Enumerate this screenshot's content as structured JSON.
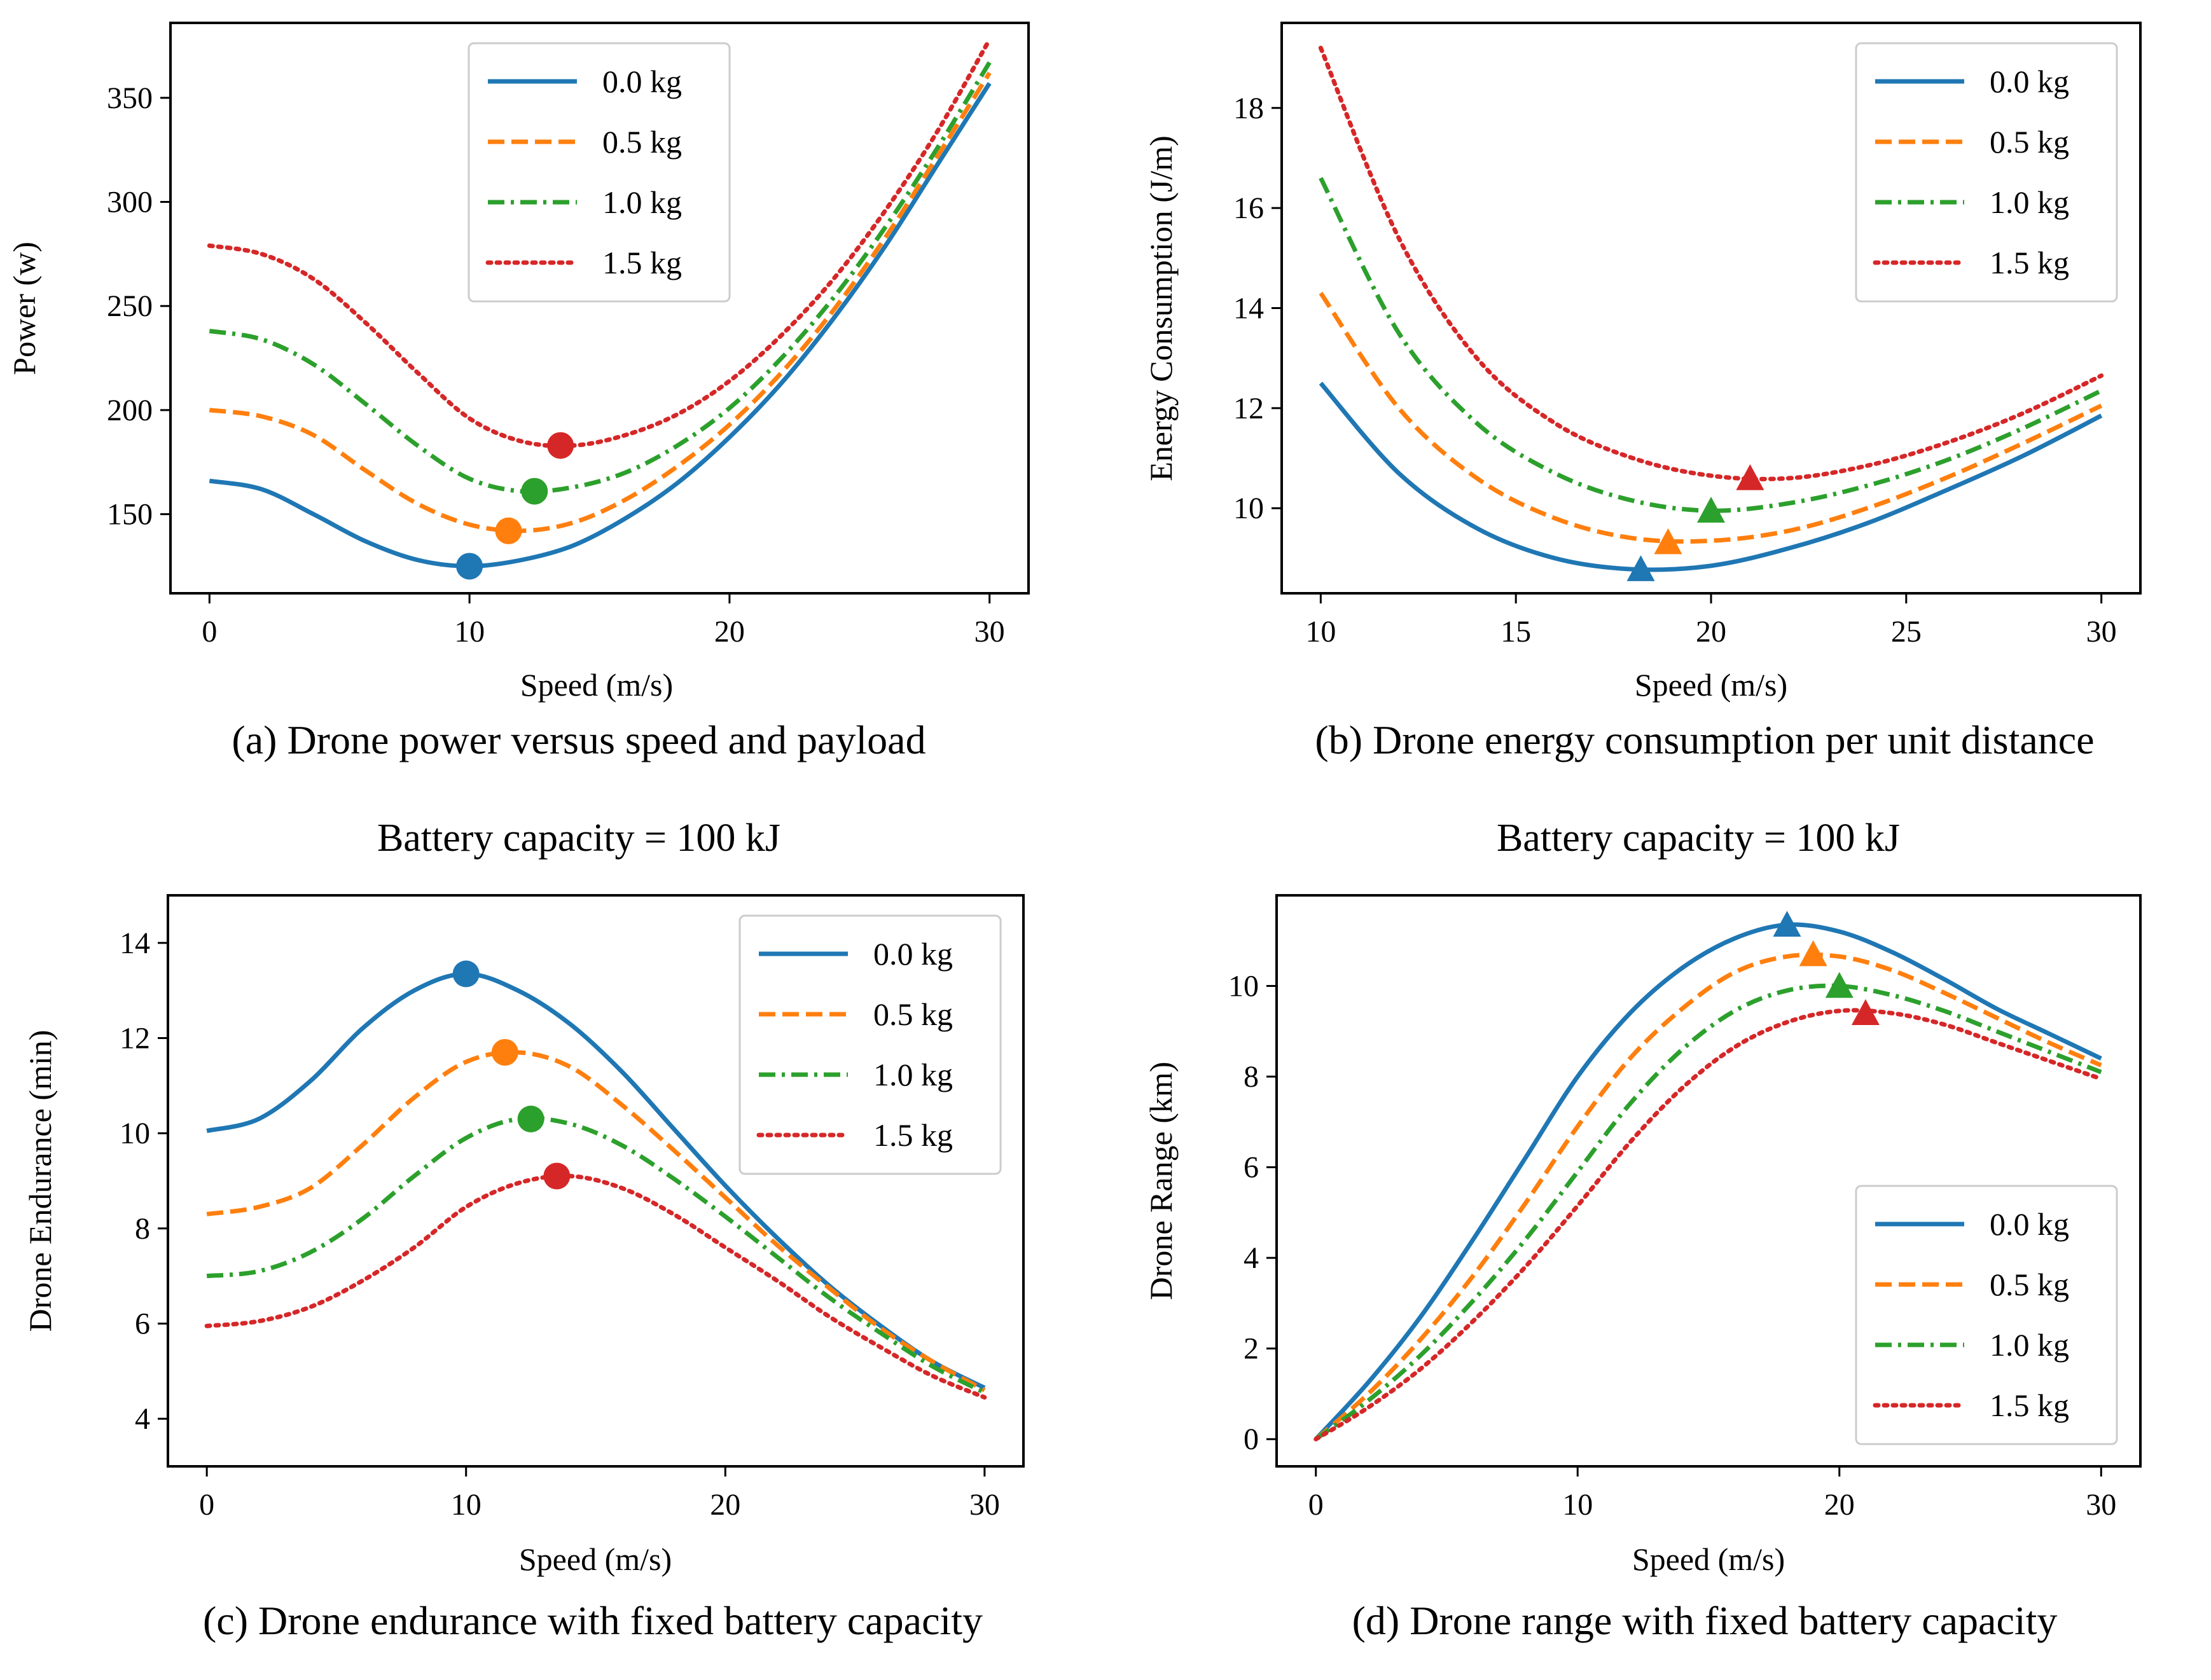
{
  "figure": {
    "colors": {
      "0.0 kg": "#1f77b4",
      "0.5 kg": "#ff7f0e",
      "1.0 kg": "#2ca02c",
      "1.5 kg": "#d62728"
    },
    "line_styles": [
      "solid",
      "dashed",
      "dashdot",
      "dotted"
    ]
  },
  "chart_data": [
    {
      "type": "line",
      "id": "a",
      "caption": "(a) Drone power versus speed and payload",
      "title": "",
      "xlabel": "Speed (m/s)",
      "ylabel": "Power (w)",
      "xlim": [
        -1.5,
        31.5
      ],
      "ylim": [
        112,
        386
      ],
      "xticks": [
        0,
        10,
        20,
        30
      ],
      "yticks": [
        150,
        200,
        250,
        300,
        350
      ],
      "grid": false,
      "legend": "top-center",
      "marker": "circle",
      "series": [
        {
          "name": "0.0 kg",
          "x": [
            0,
            2,
            4,
            6,
            8,
            10,
            12,
            14,
            16,
            18,
            20,
            22,
            24,
            26,
            28,
            30
          ],
          "y": [
            166,
            162,
            150,
            137,
            128,
            125,
            128,
            135,
            148,
            165,
            187,
            213,
            244,
            279,
            318,
            357
          ],
          "opt": [
            10.0,
            125
          ]
        },
        {
          "name": "0.5 kg",
          "x": [
            0,
            2,
            4,
            6,
            8,
            10,
            12,
            14,
            16,
            18,
            20,
            22,
            24,
            26,
            28,
            30
          ],
          "y": [
            200,
            197,
            188,
            171,
            155,
            145,
            142,
            146,
            157,
            173,
            193,
            218,
            248,
            283,
            322,
            362
          ],
          "opt": [
            11.5,
            142
          ]
        },
        {
          "name": "1.0 kg",
          "x": [
            0,
            2,
            4,
            6,
            8,
            10,
            12,
            14,
            16,
            18,
            20,
            22,
            24,
            26,
            28,
            30
          ],
          "y": [
            238,
            234,
            222,
            203,
            183,
            167,
            161,
            163,
            170,
            183,
            201,
            225,
            254,
            288,
            326,
            367
          ],
          "opt": [
            12.5,
            161
          ]
        },
        {
          "name": "1.5 kg",
          "x": [
            0,
            2,
            4,
            6,
            8,
            10,
            12,
            14,
            16,
            18,
            20,
            22,
            24,
            26,
            28,
            30
          ],
          "y": [
            279,
            275,
            263,
            242,
            218,
            196,
            185,
            183,
            188,
            198,
            214,
            236,
            263,
            296,
            334,
            378
          ],
          "opt": [
            13.5,
            183
          ]
        }
      ]
    },
    {
      "type": "line",
      "id": "b",
      "caption": "(b) Drone energy consumption per unit distance",
      "title": "",
      "xlabel": "Speed (m/s)",
      "ylabel": "Energy Consumption (J/m)",
      "xlim": [
        9,
        31
      ],
      "ylim": [
        8.3,
        19.7
      ],
      "xticks": [
        10,
        15,
        20,
        25,
        30
      ],
      "yticks": [
        10,
        12,
        14,
        16,
        18
      ],
      "grid": false,
      "legend": "top-right",
      "marker": "triangle",
      "series": [
        {
          "name": "0.0 kg",
          "x": [
            10,
            12,
            14,
            16,
            18,
            20,
            22,
            24,
            26,
            28,
            30
          ],
          "y": [
            12.5,
            10.7,
            9.6,
            9.0,
            8.78,
            8.85,
            9.2,
            9.7,
            10.35,
            11.05,
            11.85
          ],
          "opt": [
            18.2,
            8.78
          ]
        },
        {
          "name": "0.5 kg",
          "x": [
            10,
            12,
            14,
            16,
            18,
            20,
            22,
            24,
            26,
            28,
            30
          ],
          "y": [
            14.3,
            12.0,
            10.6,
            9.8,
            9.4,
            9.35,
            9.55,
            10.0,
            10.6,
            11.3,
            12.05
          ],
          "opt": [
            18.9,
            9.32
          ]
        },
        {
          "name": "1.0 kg",
          "x": [
            10,
            12,
            14,
            16,
            18,
            20,
            22,
            24,
            26,
            28,
            30
          ],
          "y": [
            16.6,
            13.5,
            11.7,
            10.7,
            10.15,
            9.95,
            10.1,
            10.45,
            10.95,
            11.6,
            12.35
          ],
          "opt": [
            20.0,
            9.95
          ]
        },
        {
          "name": "1.5 kg",
          "x": [
            10,
            12,
            14,
            16,
            18,
            20,
            22,
            24,
            26,
            28,
            30
          ],
          "y": [
            19.2,
            15.4,
            13.0,
            11.7,
            11.0,
            10.65,
            10.6,
            10.85,
            11.3,
            11.9,
            12.65
          ],
          "opt": [
            21.0,
            10.6
          ]
        }
      ]
    },
    {
      "type": "line",
      "id": "c",
      "caption": "(c) Drone endurance with fixed battery capacity",
      "title": "Battery capacity = 100 kJ",
      "xlabel": "Speed (m/s)",
      "ylabel": "Drone Endurance (min)",
      "xlim": [
        -1.5,
        31.5
      ],
      "ylim": [
        3.0,
        15.0
      ],
      "xticks": [
        0,
        10,
        20,
        30
      ],
      "yticks": [
        4,
        6,
        8,
        10,
        12,
        14
      ],
      "grid": false,
      "legend": "top-right",
      "marker": "circle",
      "series": [
        {
          "name": "0.0 kg",
          "x": [
            0,
            2,
            4,
            6,
            8,
            10,
            12,
            14,
            16,
            18,
            20,
            22,
            24,
            26,
            28,
            30
          ],
          "y": [
            10.05,
            10.3,
            11.1,
            12.2,
            13.0,
            13.35,
            13.0,
            12.3,
            11.3,
            10.1,
            8.9,
            7.8,
            6.8,
            5.95,
            5.2,
            4.65
          ],
          "opt": [
            10.0,
            13.35
          ]
        },
        {
          "name": "0.5 kg",
          "x": [
            0,
            2,
            4,
            6,
            8,
            10,
            12,
            14,
            16,
            18,
            20,
            22,
            24,
            26,
            28,
            30
          ],
          "y": [
            8.3,
            8.45,
            8.85,
            9.75,
            10.75,
            11.5,
            11.7,
            11.4,
            10.6,
            9.65,
            8.65,
            7.65,
            6.75,
            5.9,
            5.2,
            4.6
          ],
          "opt": [
            11.5,
            11.7
          ]
        },
        {
          "name": "1.0 kg",
          "x": [
            0,
            2,
            4,
            6,
            8,
            10,
            12,
            14,
            16,
            18,
            20,
            22,
            24,
            26,
            28,
            30
          ],
          "y": [
            7.0,
            7.1,
            7.5,
            8.2,
            9.1,
            9.9,
            10.3,
            10.2,
            9.75,
            9.05,
            8.25,
            7.4,
            6.55,
            5.8,
            5.1,
            4.55
          ],
          "opt": [
            12.5,
            10.3
          ]
        },
        {
          "name": "1.5 kg",
          "x": [
            0,
            2,
            4,
            6,
            8,
            10,
            12,
            14,
            16,
            18,
            20,
            22,
            24,
            26,
            28,
            30
          ],
          "y": [
            5.95,
            6.05,
            6.35,
            6.9,
            7.6,
            8.45,
            8.95,
            9.1,
            8.85,
            8.3,
            7.6,
            6.9,
            6.15,
            5.5,
            4.9,
            4.45
          ],
          "opt": [
            13.5,
            9.1
          ]
        }
      ]
    },
    {
      "type": "line",
      "id": "d",
      "caption": "(d) Drone range with fixed battery capacity",
      "title": "Battery capacity = 100 kJ",
      "xlabel": "Speed (m/s)",
      "ylabel": "Drone Range (km)",
      "xlim": [
        -1.5,
        31.5
      ],
      "ylim": [
        -0.6,
        12.0
      ],
      "xticks": [
        0,
        10,
        20,
        30
      ],
      "yticks": [
        0,
        2,
        4,
        6,
        8,
        10
      ],
      "grid": false,
      "legend": "bottom-right",
      "marker": "triangle",
      "series": [
        {
          "name": "0.0 kg",
          "x": [
            0,
            2,
            4,
            6,
            8,
            10,
            12,
            14,
            16,
            18,
            20,
            22,
            24,
            26,
            28,
            30
          ],
          "y": [
            0,
            1.25,
            2.7,
            4.4,
            6.2,
            8.0,
            9.4,
            10.4,
            11.05,
            11.35,
            11.2,
            10.75,
            10.15,
            9.5,
            8.95,
            8.4
          ],
          "opt": [
            18.0,
            11.35
          ]
        },
        {
          "name": "0.5 kg",
          "x": [
            0,
            2,
            4,
            6,
            8,
            10,
            12,
            14,
            16,
            18,
            20,
            22,
            24,
            26,
            28,
            30
          ],
          "y": [
            0,
            1.0,
            2.2,
            3.6,
            5.2,
            6.9,
            8.4,
            9.5,
            10.3,
            10.65,
            10.65,
            10.35,
            9.85,
            9.3,
            8.75,
            8.25
          ],
          "opt": [
            19.0,
            10.7
          ]
        },
        {
          "name": "1.0 kg",
          "x": [
            0,
            2,
            4,
            6,
            8,
            10,
            12,
            14,
            16,
            18,
            20,
            22,
            24,
            26,
            28,
            30
          ],
          "y": [
            0,
            0.85,
            1.85,
            3.05,
            4.4,
            5.9,
            7.4,
            8.6,
            9.45,
            9.9,
            10.0,
            9.8,
            9.45,
            9.0,
            8.55,
            8.1
          ],
          "opt": [
            20.0,
            10.0
          ]
        },
        {
          "name": "1.5 kg",
          "x": [
            0,
            2,
            4,
            6,
            8,
            10,
            12,
            14,
            16,
            18,
            20,
            22,
            24,
            26,
            28,
            30
          ],
          "y": [
            0,
            0.7,
            1.55,
            2.6,
            3.8,
            5.15,
            6.55,
            7.75,
            8.65,
            9.2,
            9.45,
            9.4,
            9.15,
            8.75,
            8.35,
            7.95
          ],
          "opt": [
            21.0,
            9.4
          ]
        }
      ]
    }
  ]
}
